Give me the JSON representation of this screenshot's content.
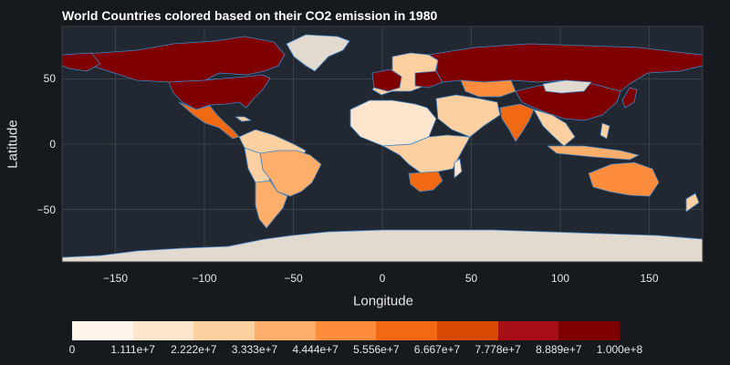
{
  "title": "World Countries colored based on their CO2 emission in 1980",
  "x_axis": {
    "label": "Longitude",
    "ticks": [
      {
        "value": -150,
        "label": "−150"
      },
      {
        "value": -100,
        "label": "−100"
      },
      {
        "value": -50,
        "label": "−50"
      },
      {
        "value": 0,
        "label": "0"
      },
      {
        "value": 50,
        "label": "50"
      },
      {
        "value": 100,
        "label": "100"
      },
      {
        "value": 150,
        "label": "150"
      }
    ]
  },
  "y_axis": {
    "label": "Latitude",
    "ticks": [
      {
        "value": 50,
        "label": "50"
      },
      {
        "value": 0,
        "label": "0"
      },
      {
        "value": -50,
        "label": "−50"
      }
    ]
  },
  "colorbar": {
    "colors": [
      "#fff5eb",
      "#fee6ce",
      "#fdd0a2",
      "#fdae6b",
      "#fd8d3c",
      "#f16913",
      "#d94801",
      "#a50f15",
      "#7f0000"
    ],
    "ticks": [
      "0",
      "1.111e+7",
      "2.222e+7",
      "3.333e+7",
      "4.444e+7",
      "5.556e+7",
      "6.667e+7",
      "7.778e+7",
      "8.889e+7",
      "1.000e+8"
    ]
  },
  "chart_data": {
    "type": "choropleth",
    "title": "World Countries colored based on their CO2 emission in 1980",
    "xlabel": "Longitude",
    "ylabel": "Latitude",
    "xlim": [
      -180,
      180
    ],
    "ylim": [
      -90,
      90
    ],
    "color_scale_range": [
      0,
      100000000
    ],
    "grid": true,
    "colorbar_placement": "bottom",
    "regions": [
      {
        "name": "United States",
        "value_bin": 9
      },
      {
        "name": "Canada",
        "value_bin": 9
      },
      {
        "name": "Mexico",
        "value_bin": 6
      },
      {
        "name": "Brazil",
        "value_bin": 4
      },
      {
        "name": "Argentina",
        "value_bin": 3
      },
      {
        "name": "Russia",
        "value_bin": 9
      },
      {
        "name": "China",
        "value_bin": 9
      },
      {
        "name": "Kazakhstan",
        "value_bin": 4
      },
      {
        "name": "Mongolia",
        "value_bin": 1
      },
      {
        "name": "India",
        "value_bin": 6
      },
      {
        "name": "Iran",
        "value_bin": 3
      },
      {
        "name": "Saudi Arabia",
        "value_bin": 3
      },
      {
        "name": "Japan",
        "value_bin": 9
      },
      {
        "name": "South Africa",
        "value_bin": 6
      },
      {
        "name": "Australia",
        "value_bin": 5
      },
      {
        "name": "Greenland",
        "value_bin": 1
      },
      {
        "name": "Antarctica",
        "value_bin": 1
      },
      {
        "name": "Indonesia",
        "value_bin": 3
      },
      {
        "name": "Europe",
        "value_bin": 9
      }
    ]
  }
}
